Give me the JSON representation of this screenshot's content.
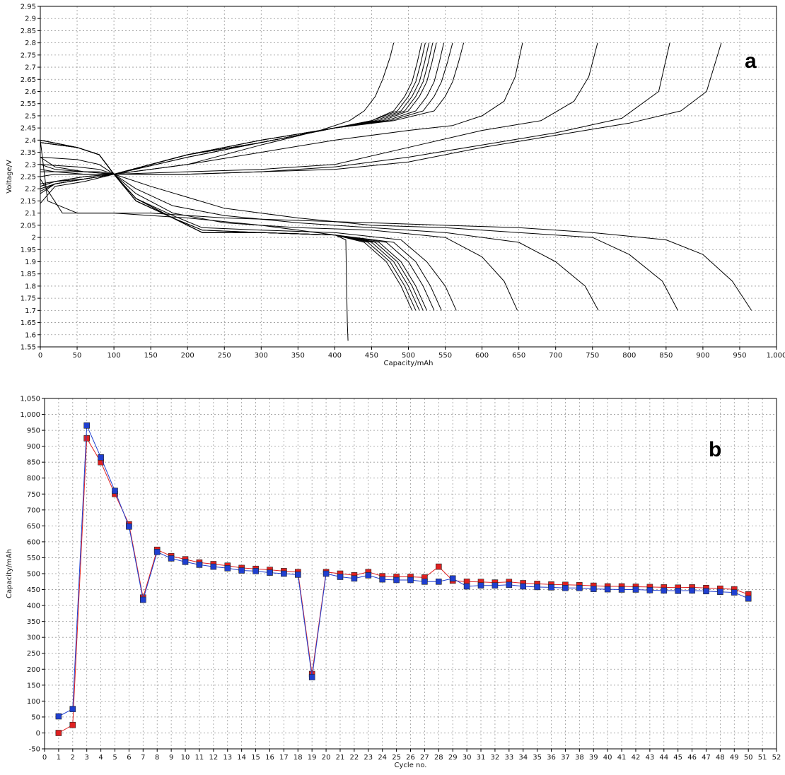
{
  "chart_data": [
    {
      "type": "line",
      "panel_label": "a",
      "xlabel": "Capacity/mAh",
      "ylabel": "Voltage/V",
      "xlim": [
        0,
        1000
      ],
      "ylim": [
        1.55,
        2.95
      ],
      "x_ticks": [
        "0",
        "50",
        "100",
        "150",
        "200",
        "250",
        "300",
        "350",
        "400",
        "450",
        "500",
        "550",
        "600",
        "650",
        "700",
        "750",
        "800",
        "850",
        "900",
        "950",
        "1,000"
      ],
      "y_ticks": [
        "1.55",
        "1.6",
        "1.65",
        "1.7",
        "1.75",
        "1.8",
        "1.85",
        "1.9",
        "1.95",
        "2",
        "2.05",
        "2.1",
        "2.15",
        "2.2",
        "2.25",
        "2.3",
        "2.35",
        "2.4",
        "2.45",
        "2.5",
        "2.55",
        "2.6",
        "2.65",
        "2.7",
        "2.75",
        "2.8",
        "2.85",
        "2.9",
        "2.95"
      ],
      "grid": true,
      "series_color": "#000000",
      "charge_curves": [
        {
          "x": [
            0,
            20,
            60,
            100,
            200,
            300,
            380,
            420,
            440,
            455,
            465,
            475,
            480
          ],
          "y": [
            2.14,
            2.21,
            2.23,
            2.26,
            2.3,
            2.38,
            2.44,
            2.48,
            2.52,
            2.58,
            2.65,
            2.74,
            2.8
          ]
        },
        {
          "x": [
            0,
            20,
            60,
            100,
            200,
            300,
            400,
            450,
            480,
            495,
            505,
            512,
            518
          ],
          "y": [
            2.18,
            2.22,
            2.24,
            2.26,
            2.33,
            2.39,
            2.45,
            2.48,
            2.52,
            2.58,
            2.64,
            2.72,
            2.8
          ]
        },
        {
          "x": [
            0,
            20,
            60,
            100,
            200,
            300,
            400,
            450,
            485,
            500,
            510,
            517,
            523
          ],
          "y": [
            2.19,
            2.22,
            2.24,
            2.26,
            2.33,
            2.39,
            2.45,
            2.48,
            2.52,
            2.58,
            2.64,
            2.72,
            2.8
          ]
        },
        {
          "x": [
            0,
            20,
            60,
            100,
            200,
            300,
            400,
            455,
            490,
            505,
            515,
            522,
            528
          ],
          "y": [
            2.2,
            2.22,
            2.24,
            2.26,
            2.34,
            2.39,
            2.45,
            2.48,
            2.52,
            2.58,
            2.64,
            2.72,
            2.8
          ]
        },
        {
          "x": [
            0,
            20,
            60,
            100,
            200,
            300,
            400,
            460,
            495,
            510,
            520,
            527,
            533
          ],
          "y": [
            2.2,
            2.22,
            2.24,
            2.26,
            2.34,
            2.39,
            2.45,
            2.48,
            2.52,
            2.58,
            2.64,
            2.72,
            2.8
          ]
        },
        {
          "x": [
            0,
            20,
            60,
            100,
            200,
            300,
            400,
            465,
            500,
            515,
            525,
            532,
            538
          ],
          "y": [
            2.21,
            2.23,
            2.24,
            2.26,
            2.34,
            2.39,
            2.45,
            2.48,
            2.52,
            2.58,
            2.64,
            2.72,
            2.8
          ]
        },
        {
          "x": [
            0,
            20,
            60,
            100,
            200,
            300,
            400,
            470,
            510,
            525,
            535,
            542,
            548
          ],
          "y": [
            2.21,
            2.23,
            2.24,
            2.26,
            2.34,
            2.4,
            2.45,
            2.48,
            2.52,
            2.58,
            2.64,
            2.72,
            2.8
          ]
        },
        {
          "x": [
            0,
            20,
            60,
            100,
            200,
            300,
            400,
            475,
            520,
            535,
            545,
            553,
            560
          ],
          "y": [
            2.21,
            2.23,
            2.25,
            2.26,
            2.34,
            2.4,
            2.45,
            2.48,
            2.52,
            2.58,
            2.64,
            2.72,
            2.8
          ]
        },
        {
          "x": [
            0,
            20,
            60,
            100,
            200,
            300,
            400,
            480,
            535,
            550,
            560,
            568,
            575
          ],
          "y": [
            2.22,
            2.23,
            2.25,
            2.26,
            2.34,
            2.4,
            2.45,
            2.48,
            2.52,
            2.58,
            2.64,
            2.72,
            2.8
          ]
        },
        {
          "x": [
            0,
            20,
            60,
            100,
            200,
            300,
            400,
            500,
            560,
            600,
            630,
            645,
            655
          ],
          "y": [
            2.25,
            2.26,
            2.26,
            2.26,
            2.3,
            2.35,
            2.4,
            2.44,
            2.46,
            2.5,
            2.56,
            2.66,
            2.8
          ]
        },
        {
          "x": [
            0,
            20,
            60,
            100,
            200,
            300,
            400,
            500,
            600,
            680,
            725,
            745,
            757
          ],
          "y": [
            2.28,
            2.27,
            2.26,
            2.26,
            2.27,
            2.28,
            2.3,
            2.37,
            2.44,
            2.48,
            2.56,
            2.66,
            2.8
          ]
        },
        {
          "x": [
            0,
            20,
            60,
            100,
            200,
            300,
            400,
            500,
            600,
            700,
            790,
            840,
            855
          ],
          "y": [
            2.3,
            2.28,
            2.27,
            2.26,
            2.26,
            2.27,
            2.29,
            2.33,
            2.38,
            2.43,
            2.49,
            2.6,
            2.8
          ]
        },
        {
          "x": [
            0,
            20,
            60,
            100,
            200,
            300,
            400,
            500,
            600,
            700,
            800,
            870,
            905,
            925
          ],
          "y": [
            2.33,
            2.29,
            2.27,
            2.26,
            2.26,
            2.27,
            2.28,
            2.31,
            2.37,
            2.42,
            2.47,
            2.52,
            2.6,
            2.8
          ]
        }
      ],
      "discharge_curves": [
        {
          "x": [
            0,
            10,
            50,
            100,
            150,
            200,
            300,
            400,
            415,
            416,
            417,
            418
          ],
          "y": [
            2.4,
            2.15,
            2.1,
            2.1,
            2.09,
            2.08,
            2.05,
            2.01,
            1.99,
            1.8,
            1.65,
            1.575
          ]
        },
        {
          "x": [
            0,
            50,
            80,
            100,
            130,
            180,
            220,
            300,
            400,
            440,
            470,
            490,
            505
          ],
          "y": [
            2.4,
            2.37,
            2.34,
            2.26,
            2.15,
            2.08,
            2.02,
            2.02,
            2.01,
            1.98,
            1.9,
            1.8,
            1.7
          ]
        },
        {
          "x": [
            0,
            50,
            80,
            100,
            130,
            180,
            220,
            300,
            400,
            445,
            475,
            495,
            510
          ],
          "y": [
            2.4,
            2.37,
            2.34,
            2.26,
            2.15,
            2.08,
            2.02,
            2.02,
            2.01,
            1.98,
            1.9,
            1.8,
            1.7
          ]
        },
        {
          "x": [
            0,
            50,
            80,
            100,
            130,
            180,
            220,
            300,
            400,
            450,
            480,
            500,
            515
          ],
          "y": [
            2.4,
            2.37,
            2.34,
            2.26,
            2.15,
            2.08,
            2.02,
            2.02,
            2.01,
            1.98,
            1.9,
            1.8,
            1.7
          ]
        },
        {
          "x": [
            0,
            50,
            80,
            100,
            130,
            180,
            220,
            300,
            400,
            455,
            485,
            505,
            520
          ],
          "y": [
            2.4,
            2.37,
            2.34,
            2.26,
            2.15,
            2.08,
            2.02,
            2.02,
            2.01,
            1.98,
            1.9,
            1.8,
            1.7
          ]
        },
        {
          "x": [
            0,
            50,
            80,
            100,
            130,
            180,
            220,
            300,
            400,
            460,
            490,
            510,
            525
          ],
          "y": [
            2.39,
            2.37,
            2.34,
            2.26,
            2.15,
            2.08,
            2.02,
            2.02,
            2.01,
            1.98,
            1.9,
            1.8,
            1.7
          ]
        },
        {
          "x": [
            0,
            50,
            80,
            100,
            130,
            180,
            220,
            300,
            400,
            470,
            500,
            520,
            535
          ],
          "y": [
            2.39,
            2.37,
            2.34,
            2.26,
            2.16,
            2.08,
            2.03,
            2.02,
            2.01,
            1.98,
            1.9,
            1.8,
            1.7
          ]
        },
        {
          "x": [
            0,
            50,
            80,
            100,
            130,
            180,
            220,
            300,
            400,
            480,
            510,
            530,
            545
          ],
          "y": [
            2.39,
            2.37,
            2.34,
            2.26,
            2.16,
            2.08,
            2.03,
            2.02,
            2.01,
            1.98,
            1.9,
            1.8,
            1.7
          ]
        },
        {
          "x": [
            0,
            50,
            80,
            100,
            130,
            180,
            220,
            300,
            400,
            490,
            525,
            550,
            565
          ],
          "y": [
            2.39,
            2.37,
            2.34,
            2.26,
            2.16,
            2.09,
            2.04,
            2.03,
            2.02,
            1.99,
            1.9,
            1.8,
            1.7
          ]
        },
        {
          "x": [
            0,
            50,
            80,
            100,
            130,
            180,
            250,
            350,
            450,
            550,
            600,
            630,
            648
          ],
          "y": [
            2.33,
            2.32,
            2.3,
            2.26,
            2.18,
            2.1,
            2.06,
            2.04,
            2.03,
            2.0,
            1.92,
            1.82,
            1.7
          ]
        },
        {
          "x": [
            0,
            50,
            80,
            100,
            130,
            180,
            250,
            350,
            450,
            550,
            650,
            700,
            740,
            758
          ],
          "y": [
            2.3,
            2.29,
            2.28,
            2.26,
            2.2,
            2.13,
            2.09,
            2.06,
            2.04,
            2.02,
            1.98,
            1.9,
            1.8,
            1.7
          ]
        },
        {
          "x": [
            0,
            50,
            80,
            100,
            150,
            250,
            350,
            450,
            550,
            650,
            750,
            800,
            845,
            866
          ],
          "y": [
            2.27,
            2.27,
            2.27,
            2.26,
            2.21,
            2.12,
            2.08,
            2.05,
            2.04,
            2.02,
            2.0,
            1.93,
            1.82,
            1.7
          ]
        },
        {
          "x": [
            0,
            30,
            100,
            150,
            250,
            350,
            450,
            550,
            650,
            750,
            850,
            900,
            940,
            966
          ],
          "y": [
            2.24,
            2.1,
            2.1,
            2.1,
            2.08,
            2.07,
            2.06,
            2.05,
            2.04,
            2.02,
            1.99,
            1.93,
            1.82,
            1.7
          ]
        }
      ]
    },
    {
      "type": "line",
      "panel_label": "b",
      "xlabel": "Cycle no.",
      "ylabel": "Capacity/mAh",
      "xlim": [
        0,
        52
      ],
      "ylim": [
        -50,
        1050
      ],
      "x_ticks": [
        "0",
        "1",
        "2",
        "3",
        "4",
        "5",
        "6",
        "7",
        "8",
        "9",
        "10",
        "11",
        "12",
        "13",
        "14",
        "15",
        "16",
        "17",
        "18",
        "19",
        "20",
        "21",
        "22",
        "23",
        "24",
        "25",
        "26",
        "27",
        "28",
        "29",
        "30",
        "31",
        "32",
        "33",
        "34",
        "35",
        "36",
        "37",
        "38",
        "39",
        "40",
        "41",
        "42",
        "43",
        "44",
        "45",
        "46",
        "47",
        "48",
        "49",
        "50",
        "51",
        "52"
      ],
      "y_ticks": [
        "-50",
        "0",
        "50",
        "100",
        "150",
        "200",
        "250",
        "300",
        "350",
        "400",
        "450",
        "500",
        "550",
        "600",
        "650",
        "700",
        "750",
        "800",
        "850",
        "900",
        "950",
        "1,000",
        "1,050"
      ],
      "grid": true,
      "x": [
        1,
        2,
        3,
        4,
        5,
        6,
        7,
        8,
        9,
        10,
        11,
        12,
        13,
        14,
        15,
        16,
        17,
        18,
        19,
        20,
        21,
        22,
        23,
        24,
        25,
        26,
        27,
        28,
        29,
        30,
        31,
        32,
        33,
        34,
        35,
        36,
        37,
        38,
        39,
        40,
        41,
        42,
        43,
        44,
        45,
        46,
        47,
        48,
        49,
        50
      ],
      "series": [
        {
          "color": "#e02020",
          "values": [
            0,
            25,
            925,
            850,
            750,
            655,
            425,
            575,
            555,
            545,
            535,
            530,
            525,
            518,
            515,
            512,
            508,
            505,
            185,
            505,
            500,
            495,
            505,
            492,
            490,
            490,
            488,
            522,
            478,
            475,
            474,
            472,
            474,
            470,
            468,
            466,
            465,
            464,
            462,
            460,
            460,
            459,
            458,
            457,
            456,
            457,
            455,
            453,
            451,
            435
          ]
        },
        {
          "color": "#1f3fd0",
          "values": [
            52,
            75,
            965,
            865,
            760,
            648,
            418,
            568,
            548,
            537,
            528,
            522,
            517,
            510,
            508,
            503,
            500,
            497,
            175,
            500,
            490,
            485,
            495,
            482,
            480,
            480,
            475,
            475,
            485,
            460,
            463,
            463,
            465,
            460,
            458,
            457,
            455,
            455,
            452,
            451,
            450,
            450,
            448,
            447,
            446,
            447,
            445,
            443,
            441,
            422
          ]
        }
      ]
    }
  ]
}
